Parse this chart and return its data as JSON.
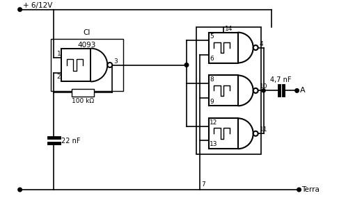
{
  "bg_color": "#ffffff",
  "line_color": "#000000",
  "text_color": "#000000",
  "figsize": [
    5.2,
    2.85
  ],
  "dpi": 100,
  "vcc_label": "+ 6/12V",
  "gnd_label": "Terra",
  "ci_label1": "CI",
  "ci_label2": "4093",
  "res_label": "100 kΩ",
  "cap22_label": "22 nF",
  "cap47_label": "4,7 nF",
  "out_label": "A",
  "pin_g0_in1": "1",
  "pin_g0_in2": "2",
  "pin_g0_out": "3",
  "pin_g1_in1": "5",
  "pin_g1_in2": "6",
  "pin_g1_out": "4",
  "pin_g1_vcc": "14",
  "pin_g2_in1": "8",
  "pin_g2_in2": "9",
  "pin_g2_out": "10",
  "pin_g3_in1": "12",
  "pin_g3_in2": "13",
  "pin_g3_out": "11",
  "pin_gnd": "7"
}
